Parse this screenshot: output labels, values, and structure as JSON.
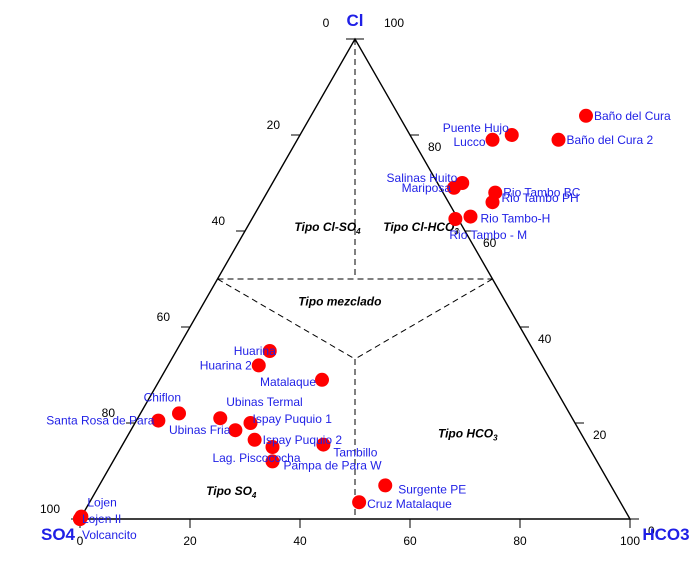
{
  "chart_data": {
    "type": "scatter",
    "subtype": "ternary",
    "vertices": {
      "top": "Cl",
      "left": "SO4",
      "right": "HCO3"
    },
    "vertex_labels": [
      {
        "id": "top",
        "text": "Cl"
      },
      {
        "id": "left",
        "text": "SO4"
      },
      {
        "id": "right",
        "text": "HCO3"
      }
    ],
    "axis_ticks": {
      "bottom": [
        "0",
        "20",
        "40",
        "60",
        "80",
        "100"
      ],
      "left": [
        "0",
        "20",
        "40",
        "60",
        "80",
        "100"
      ],
      "right": [
        "0",
        "20",
        "40",
        "60",
        "80",
        "100"
      ]
    },
    "regions": [
      {
        "main": "Tipo Cl-SO",
        "sub": "4"
      },
      {
        "main": "Tipo Cl-HCO",
        "sub": "3"
      },
      {
        "main": "Tipo mezclado",
        "sub": ""
      },
      {
        "main": "Tipo SO",
        "sub": "4"
      },
      {
        "main": "Tipo HCO",
        "sub": "3"
      }
    ],
    "marker_color": "#ff0000",
    "label_color": "#1f1fe6",
    "points": [
      {
        "label": "Baño del Cura",
        "cl": 84,
        "hco3": 50
      },
      {
        "label": "Baño del Cura 2",
        "cl": 79,
        "hco3": 47.5
      },
      {
        "label": "Puente Hujo",
        "cl": 80,
        "hco3": 38.5
      },
      {
        "label": "Lucco",
        "cl": 79,
        "hco3": 35.5
      },
      {
        "label": "Salinas Huito",
        "cl": 70,
        "hco3": 34.5
      },
      {
        "label": "Mariposa",
        "cl": 69,
        "hco3": 33.5
      },
      {
        "label": "Rio Tambo BC",
        "cl": 68,
        "hco3": 41.5
      },
      {
        "label": "Rio Tambo PH",
        "cl": 66,
        "hco3": 42
      },
      {
        "label": "Rio Tambo-H",
        "cl": 63,
        "hco3": 39.5
      },
      {
        "label": "Rio Tambo - M",
        "cl": 62.5,
        "hco3": 37
      },
      {
        "label": "Huarina",
        "cl": 35,
        "hco3": 17
      },
      {
        "label": "Huarina 2",
        "cl": 32,
        "hco3": 16.5
      },
      {
        "label": "Matalaque",
        "cl": 29,
        "hco3": 29.5
      },
      {
        "label": "Chiflon",
        "cl": 22,
        "hco3": 7
      },
      {
        "label": "Santa Rosa de Para",
        "cl": 20.5,
        "hco3": 4
      },
      {
        "label": "Ubinas Termal",
        "cl": 21,
        "hco3": 15
      },
      {
        "label": "Ispay Puquio 1",
        "cl": 20,
        "hco3": 21
      },
      {
        "label": "Ubinas Fria",
        "cl": 18.5,
        "hco3": 19
      },
      {
        "label": "Ispay Puquio 2",
        "cl": 16.5,
        "hco3": 23.5
      },
      {
        "label": "Lag. Piscococha",
        "cl": 15,
        "hco3": 27.5
      },
      {
        "label": "Tambillo",
        "cl": 15.5,
        "hco3": 36.5
      },
      {
        "label": "Pampa de Para W",
        "cl": 12,
        "hco3": 29
      },
      {
        "label": "Surgente PE",
        "cl": 7,
        "hco3": 52
      },
      {
        "label": "Cruz Matalaque",
        "cl": 3.5,
        "hco3": 49
      },
      {
        "label": "Lojen",
        "cl": 0.5,
        "hco3": 0
      },
      {
        "label": "Lojen II",
        "cl": 0,
        "hco3": 0
      },
      {
        "label": "Volcancito",
        "cl": 0,
        "hco3": 0
      }
    ]
  }
}
